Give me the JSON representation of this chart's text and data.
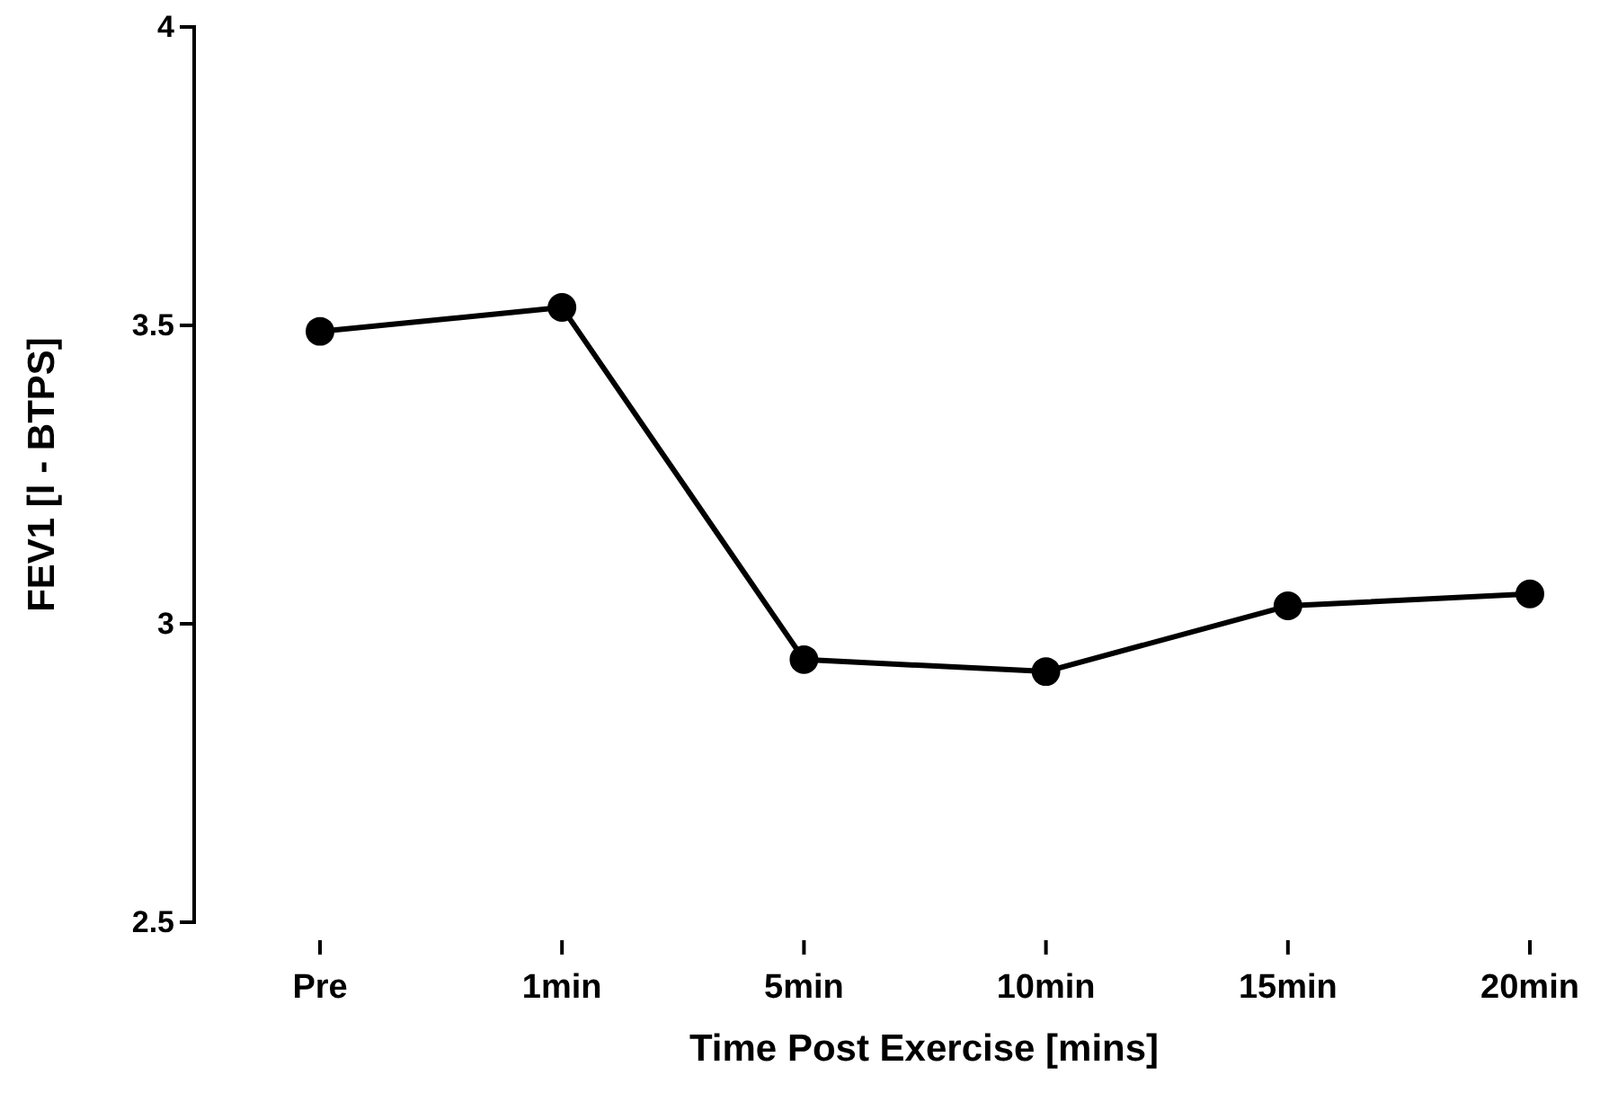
{
  "chart_data": {
    "type": "line",
    "xlabel": "Time Post Exercise [mins]",
    "ylabel": "FEV1 [l - BTPS]",
    "categories": [
      "Pre",
      "1min",
      "5min",
      "10min",
      "15min",
      "20min"
    ],
    "series": [
      {
        "color": "#000000",
        "values": [
          3.49,
          3.53,
          2.94,
          2.92,
          3.03,
          3.05
        ]
      }
    ],
    "ylim": [
      2.5,
      4
    ],
    "yticks": [
      2.5,
      3,
      3.5,
      4
    ],
    "marker": "circle",
    "line_style": "solid",
    "grid": false
  }
}
